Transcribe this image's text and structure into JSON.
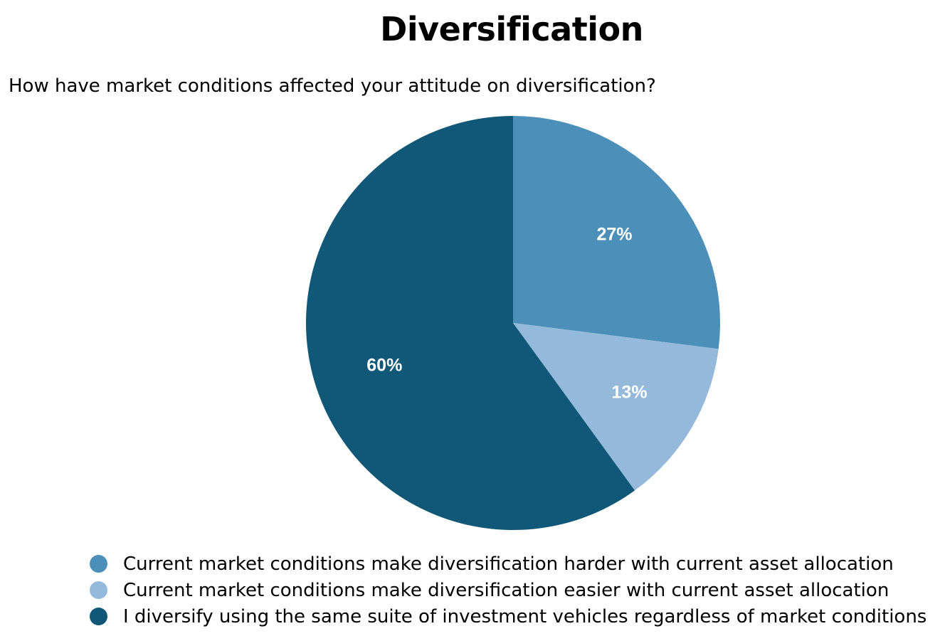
{
  "title": "Diversification",
  "subtitle": "How have market conditions affected your attitude on diversification?",
  "chart_data": {
    "type": "pie",
    "title": "Diversification",
    "subtitle": "How have market conditions affected your attitude on diversification?",
    "slices": [
      {
        "label": "Current market conditions make diversification harder with current asset allocation",
        "value": 27,
        "display": "27%",
        "color": "#4c90b9"
      },
      {
        "label": "Current market conditions make diversification easier with current asset allocation",
        "value": 13,
        "display": "13%",
        "color": "#95b9db"
      },
      {
        "label": "I diversify using the same suite of investment vehicles regardless of market conditions",
        "value": 60,
        "display": "60%",
        "color": "#115878"
      }
    ],
    "start_angle": "12 o'clock",
    "direction": "clockwise",
    "legend_position": "bottom"
  }
}
